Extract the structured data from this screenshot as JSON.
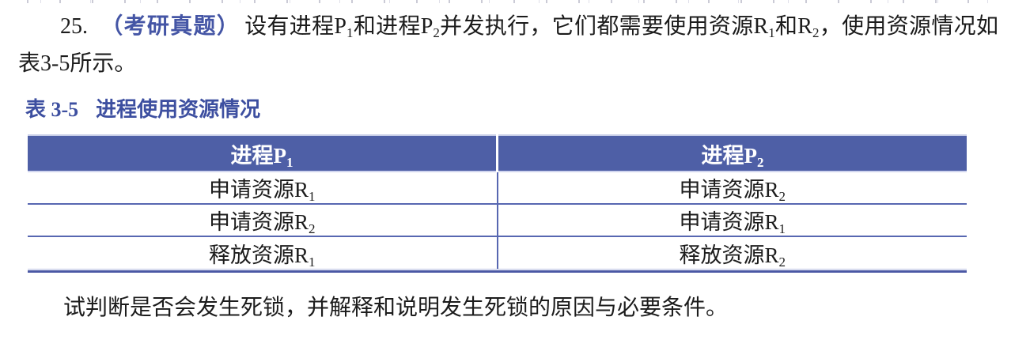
{
  "question": {
    "number": "25.",
    "exam_tag": "（考研真题）",
    "s1": "设有进程P",
    "sub1": "1",
    "s2": "和进程P",
    "sub2": "2",
    "s3": "并发执行，它们都需要使用资源R",
    "sub3": "1",
    "s4": "和R",
    "sub4": "2",
    "s5": "，使用资源情况如表3-5所示。"
  },
  "caption": {
    "label": "表 3-5",
    "title": "进程使用资源情况"
  },
  "table": {
    "headers": [
      {
        "base": "进程P",
        "sub": "1"
      },
      {
        "base": "进程P",
        "sub": "2"
      }
    ],
    "rows": [
      [
        {
          "base": "申请资源R",
          "sub": "1"
        },
        {
          "base": "申请资源R",
          "sub": "2"
        }
      ],
      [
        {
          "base": "申请资源R",
          "sub": "2"
        },
        {
          "base": "申请资源R",
          "sub": "1"
        }
      ],
      [
        {
          "base": "释放资源R",
          "sub": "1"
        },
        {
          "base": "释放资源R",
          "sub": "2"
        }
      ]
    ]
  },
  "closing": "试判断是否会发生死锁，并解释和说明发生死锁的原因与必要条件。",
  "colors": {
    "header_bg": "#4e5fa6",
    "header_text": "#ffffff",
    "caption_blue": "#3d4fa0",
    "exam_tag_blue": "#4455a5",
    "row_line_blue": "#5767b1",
    "table_top_line": "#c7cde7",
    "table_bottom_line": "#4a58a4",
    "body_text": "#1c1c1c"
  }
}
